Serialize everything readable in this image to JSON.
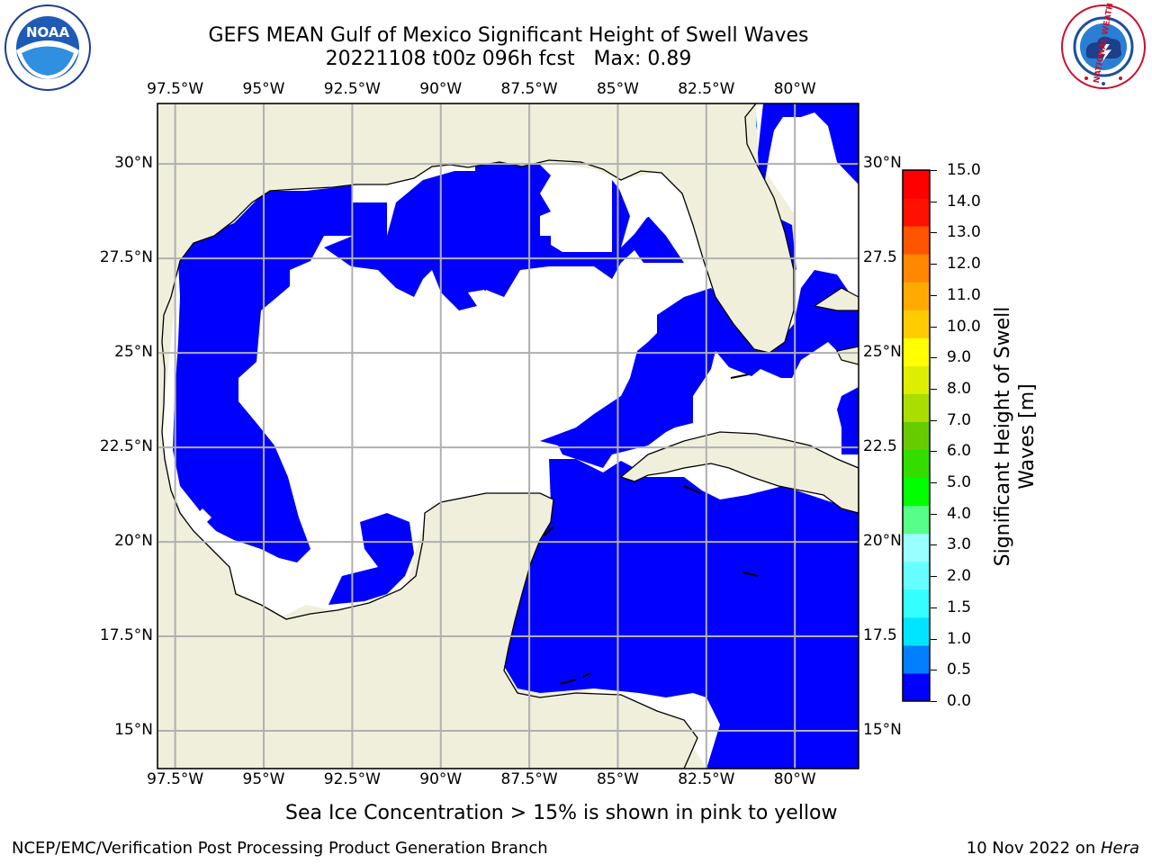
{
  "title_line1": "GEFS MEAN Gulf of Mexico Significant Height of Swell Waves",
  "title_line2": "20221108 t00z 096h fcst   Max: 0.89",
  "logos": {
    "left": {
      "name": "noaa-logo",
      "text": "NOAA"
    },
    "right": {
      "name": "nws-logo",
      "text": "NATIONAL WEATHER SERVICE"
    }
  },
  "map": {
    "lon_range": [
      -98,
      -78.2
    ],
    "lat_range": [
      14,
      31.6
    ],
    "lon_labels_top": [
      "97.5°W",
      "95°W",
      "92.5°W",
      "90°W",
      "87.5°W",
      "85°W",
      "82.5°W",
      "80°W"
    ],
    "lon_labels_bottom": [
      "97.5°W",
      "95°W",
      "92.5°W",
      "90°W",
      "87.5°W",
      "85°W",
      "82.5°W",
      "80°W"
    ],
    "lon_values": [
      -97.5,
      -95,
      -92.5,
      -90,
      -87.5,
      -85,
      -82.5,
      -80
    ],
    "lat_labels_left": [
      "30°N",
      "27.5°N",
      "25°N",
      "22.5°N",
      "20°N",
      "17.5°N",
      "15°N"
    ],
    "lat_labels_right": [
      "30°N",
      "27.5",
      "25°N",
      "22.5",
      "20°N",
      "17.5",
      "15°N"
    ],
    "lat_values": [
      30,
      27.5,
      25,
      22.5,
      20,
      17.5,
      15
    ],
    "colors": {
      "land": "#efefdc",
      "no_data": "#ffffff",
      "swell_low": "#0000ff",
      "swell_mid": "#0080ff",
      "grid": "#b0b0b0",
      "coast": "#000000"
    }
  },
  "colorbar": {
    "label": "Significant Height of Swell\nWaves [m]",
    "ticks": [
      "0.0",
      "0.5",
      "1.0",
      "1.5",
      "2.0",
      "3.0",
      "4.0",
      "5.0",
      "6.0",
      "7.0",
      "8.0",
      "9.0",
      "10.0",
      "11.0",
      "12.0",
      "13.0",
      "14.0",
      "15.0"
    ],
    "colors": [
      "#0000ff",
      "#0080ff",
      "#00e5ff",
      "#33ffff",
      "#66ffff",
      "#99ffff",
      "#55ff88",
      "#00ff00",
      "#33dd00",
      "#66cc00",
      "#aadd00",
      "#ddee00",
      "#ffff00",
      "#ffcc00",
      "#ffaa00",
      "#ff8800",
      "#ff5500",
      "#ff1100",
      "#ff0000"
    ]
  },
  "note": "Sea Ice Concentration > 15% is shown in pink to yellow",
  "footer_left": "NCEP/EMC/Verification Post Processing Product Generation Branch",
  "footer_right_prefix": "10 Nov 2022 on ",
  "footer_right_host": "Hera"
}
